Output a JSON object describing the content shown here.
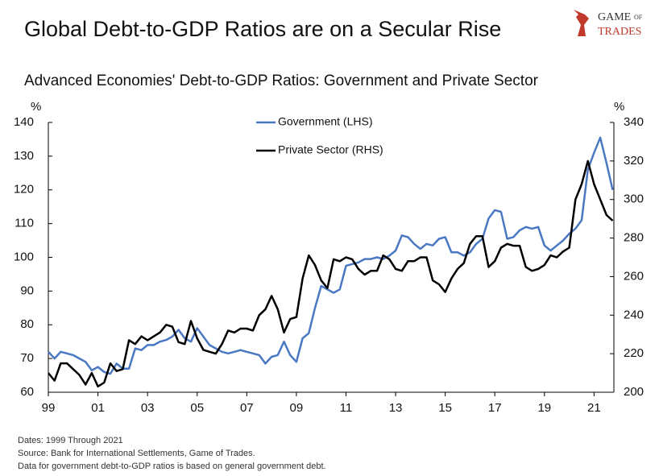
{
  "chart_data": {
    "type": "line",
    "title": "Global Debt-to-GDP Ratios are on a Secular Rise",
    "subtitle": "Advanced Economies' Debt-to-GDP Ratios: Government and Private Sector",
    "logo": {
      "line1": "GAME",
      "line2": "OF",
      "line3": "TRADES"
    },
    "y_unit": "%",
    "y2_unit": "%",
    "notes": [
      "Dates: 1999 Through 2021",
      "Source: Bank for International Settlements, Game of Trades.",
      "Data for government debt-to-GDP ratios is based on general government debt."
    ],
    "x": [
      1999,
      1999.25,
      1999.5,
      1999.75,
      2000,
      2000.25,
      2000.5,
      2000.75,
      2001,
      2001.25,
      2001.5,
      2001.75,
      2002,
      2002.25,
      2002.5,
      2002.75,
      2003,
      2003.25,
      2003.5,
      2003.75,
      2004,
      2004.25,
      2004.5,
      2004.75,
      2005,
      2005.25,
      2005.5,
      2005.75,
      2006,
      2006.25,
      2006.5,
      2006.75,
      2007,
      2007.25,
      2007.5,
      2007.75,
      2008,
      2008.25,
      2008.5,
      2008.75,
      2009,
      2009.25,
      2009.5,
      2009.75,
      2010,
      2010.25,
      2010.5,
      2010.75,
      2011,
      2011.25,
      2011.5,
      2011.75,
      2012,
      2012.25,
      2012.5,
      2012.75,
      2013,
      2013.25,
      2013.5,
      2013.75,
      2014,
      2014.25,
      2014.5,
      2014.75,
      2015,
      2015.25,
      2015.5,
      2015.75,
      2016,
      2016.25,
      2016.5,
      2016.75,
      2017,
      2017.25,
      2017.5,
      2017.75,
      2018,
      2018.25,
      2018.5,
      2018.75,
      2019,
      2019.25,
      2019.5,
      2019.75,
      2020,
      2020.25,
      2020.5,
      2020.75,
      2021,
      2021.25,
      2021.5,
      2021.75
    ],
    "series": [
      {
        "name": "Government (LHS)",
        "color": "#4a78c2",
        "axis": "y",
        "values": [
          72,
          70,
          72,
          71.5,
          71,
          70,
          69,
          66.5,
          67.5,
          66,
          65.5,
          68.5,
          67,
          67,
          73,
          72.5,
          74,
          74,
          75,
          75.5,
          76.5,
          78.5,
          76,
          75,
          79,
          76.5,
          74,
          73,
          72,
          71.5,
          72,
          72.5,
          72,
          71.5,
          71,
          68.5,
          70.5,
          71,
          75,
          71,
          69,
          76,
          77.5,
          85,
          91.5,
          90.5,
          89.5,
          90.5,
          97.5,
          98,
          98.5,
          99.5,
          99.5,
          100,
          99.5,
          100.5,
          102,
          106.5,
          106,
          104,
          102.5,
          104,
          103.5,
          105.5,
          106,
          101.5,
          101.5,
          100.5,
          101.5,
          104,
          105.5,
          111.5,
          114,
          113.5,
          105.5,
          106,
          108,
          109,
          108.5,
          109,
          103.5,
          102,
          103.5,
          105,
          107,
          108.5,
          111,
          126,
          131,
          135.5,
          128,
          120
        ]
      },
      {
        "name": "Private Sector (RHS)",
        "color": "#000000",
        "axis": "y2",
        "values": [
          210,
          206,
          215,
          215,
          212,
          209,
          204,
          210,
          203,
          205,
          215,
          211,
          212,
          227,
          225,
          229,
          227,
          229,
          231,
          235,
          234,
          226,
          225,
          237,
          228,
          222,
          221,
          220,
          225,
          232,
          231,
          233,
          233,
          232,
          240,
          243,
          250,
          243,
          231,
          238,
          239,
          259,
          271,
          266,
          258,
          254,
          269,
          268,
          270,
          269,
          264,
          261,
          263,
          263,
          271,
          269,
          264,
          263,
          268,
          268,
          270,
          270,
          258,
          256,
          252,
          259,
          264,
          267,
          277,
          281,
          281,
          265,
          268,
          275,
          277,
          276,
          276,
          265,
          263,
          264,
          266,
          271,
          270,
          273,
          275,
          300,
          308,
          320,
          308,
          300,
          292,
          289
        ]
      }
    ],
    "xlim": [
      1999,
      2021.8
    ],
    "xticks": [
      {
        "value": 1999,
        "label": "99"
      },
      {
        "value": 2001,
        "label": "01"
      },
      {
        "value": 2003,
        "label": "03"
      },
      {
        "value": 2005,
        "label": "05"
      },
      {
        "value": 2007,
        "label": "07"
      },
      {
        "value": 2009,
        "label": "09"
      },
      {
        "value": 2011,
        "label": "11"
      },
      {
        "value": 2013,
        "label": "13"
      },
      {
        "value": 2015,
        "label": "15"
      },
      {
        "value": 2017,
        "label": "17"
      },
      {
        "value": 2019,
        "label": "19"
      },
      {
        "value": 2021,
        "label": "21"
      }
    ],
    "ylim": [
      60,
      140
    ],
    "yticks": [
      60,
      70,
      80,
      90,
      100,
      110,
      120,
      130,
      140
    ],
    "y2lim": [
      200,
      340
    ],
    "y2ticks": [
      200,
      220,
      240,
      260,
      280,
      300,
      320,
      340
    ],
    "legend": "top"
  }
}
